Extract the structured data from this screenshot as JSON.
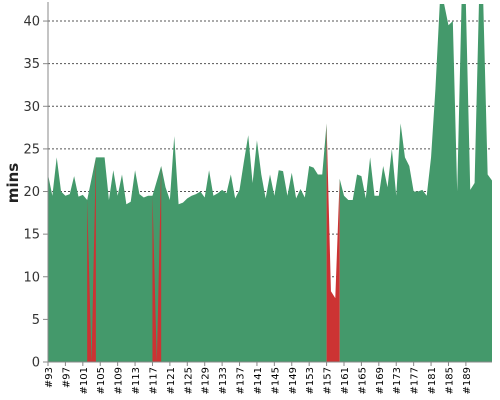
{
  "chart_data": {
    "type": "area",
    "ylabel": "mins",
    "xlabel": "",
    "title": "",
    "ylim": [
      0,
      42
    ],
    "yticks": [
      0,
      5,
      10,
      15,
      20,
      25,
      30,
      35,
      40
    ],
    "grid": true,
    "x_tick_labels": [
      "#93",
      "#97",
      "#101",
      "#105",
      "#109",
      "#113",
      "#117",
      "#121",
      "#125",
      "#129",
      "#133",
      "#137",
      "#141",
      "#145",
      "#149",
      "#153",
      "#157",
      "#161",
      "#165",
      "#169",
      "#173",
      "#177",
      "#181",
      "#185",
      "#189"
    ],
    "x_start": 93,
    "series": [
      {
        "status": "pass",
        "color": "#44996b",
        "points": [
          [
            93,
            22
          ],
          [
            94,
            19.5
          ],
          [
            95,
            24
          ],
          [
            96,
            20
          ],
          [
            97,
            19.5
          ],
          [
            98,
            19.7
          ],
          [
            99,
            21.8
          ],
          [
            100,
            19.4
          ],
          [
            101,
            19.6
          ],
          [
            102,
            19
          ],
          [
            104,
            24
          ],
          [
            105,
            24
          ],
          [
            106,
            24
          ],
          [
            107,
            19
          ],
          [
            108,
            22.5
          ],
          [
            109,
            19.5
          ],
          [
            110,
            22
          ],
          [
            111,
            18.5
          ],
          [
            112,
            18.8
          ],
          [
            113,
            22.5
          ],
          [
            114,
            19.7
          ],
          [
            115,
            19.3
          ],
          [
            116,
            19.5
          ],
          [
            117,
            19.5
          ],
          [
            119,
            23
          ],
          [
            120,
            20.5
          ],
          [
            121,
            19
          ],
          [
            122,
            26.5
          ],
          [
            123,
            18.5
          ],
          [
            124,
            18.7
          ],
          [
            125,
            19.2
          ],
          [
            126,
            19.5
          ],
          [
            127,
            19.7
          ],
          [
            128,
            20
          ],
          [
            129,
            19.3
          ],
          [
            130,
            22.5
          ],
          [
            131,
            19.5
          ],
          [
            132,
            19.8
          ],
          [
            133,
            20.2
          ],
          [
            134,
            19.8
          ],
          [
            135,
            22
          ],
          [
            136,
            19.2
          ],
          [
            137,
            20.2
          ],
          [
            138,
            23.5
          ],
          [
            139,
            26.6
          ],
          [
            140,
            21
          ],
          [
            141,
            26
          ],
          [
            142,
            22
          ],
          [
            143,
            19.2
          ],
          [
            144,
            22
          ],
          [
            145,
            19.5
          ],
          [
            146,
            22.5
          ],
          [
            147,
            22.4
          ],
          [
            148,
            19.5
          ],
          [
            149,
            22.2
          ],
          [
            150,
            19.2
          ],
          [
            151,
            20.3
          ],
          [
            152,
            19.3
          ],
          [
            153,
            23
          ],
          [
            154,
            22.8
          ],
          [
            155,
            22
          ],
          [
            156,
            22
          ],
          [
            157,
            28
          ]
        ]
      },
      {
        "status": "pass",
        "color": "#44996b",
        "points": [
          [
            160,
            21.5
          ],
          [
            161,
            19.5
          ],
          [
            162,
            19
          ],
          [
            163,
            19
          ],
          [
            164,
            22
          ],
          [
            165,
            21.8
          ],
          [
            166,
            19.2
          ],
          [
            167,
            24
          ],
          [
            168,
            19.5
          ],
          [
            169,
            19.5
          ],
          [
            170,
            23
          ],
          [
            171,
            20.5
          ],
          [
            172,
            25
          ],
          [
            173,
            19.5
          ],
          [
            174,
            28
          ],
          [
            175,
            24
          ],
          [
            176,
            23
          ],
          [
            177,
            20
          ],
          [
            178,
            20
          ],
          [
            179,
            20.2
          ],
          [
            180,
            19.5
          ],
          [
            181,
            24
          ],
          [
            182,
            32
          ],
          [
            183,
            42
          ],
          [
            184,
            42
          ],
          [
            185,
            39.5
          ],
          [
            186,
            40
          ],
          [
            187,
            20
          ],
          [
            188,
            42
          ],
          [
            189,
            42
          ],
          [
            190,
            20.2
          ],
          [
            191,
            21
          ],
          [
            192,
            42
          ],
          [
            193,
            42
          ],
          [
            194,
            22
          ],
          [
            195,
            21.3
          ]
        ]
      },
      {
        "status": "fail",
        "color": "#cc3333",
        "points": [
          [
            102,
            19
          ],
          [
            103,
            0
          ],
          [
            104,
            24
          ]
        ]
      },
      {
        "status": "fail",
        "color": "#cc3333",
        "points": [
          [
            117,
            19.5
          ],
          [
            118,
            0
          ],
          [
            119,
            23
          ]
        ]
      },
      {
        "status": "fail",
        "color": "#cc3333",
        "points": [
          [
            157,
            28
          ],
          [
            158,
            8.3
          ],
          [
            159,
            7.5
          ],
          [
            160,
            21.5
          ]
        ]
      }
    ]
  }
}
